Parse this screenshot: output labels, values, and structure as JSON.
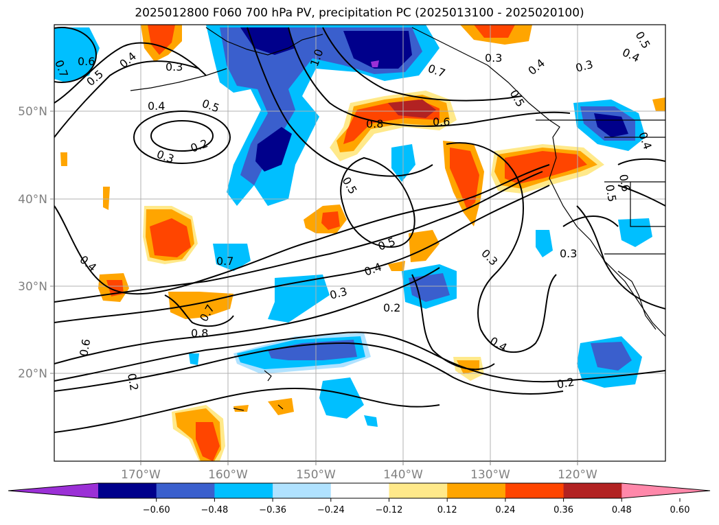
{
  "title": "2025012800 F060 700 hPa PV, precipitation PC (2025013100 - 2025020100)",
  "map": {
    "lon_labels": [
      "170°W",
      "160°W",
      "150°W",
      "140°W",
      "130°W",
      "120°W"
    ],
    "lat_labels": [
      "50°N",
      "40°N",
      "30°N",
      "20°N"
    ],
    "contour_labels": [
      "0.7",
      "0.6",
      "0.5",
      "0.4",
      "0.3",
      "0.4",
      "0.5",
      "0.4",
      "0.3",
      "0.2",
      "1.0",
      "0.8",
      "0.6",
      "0.7",
      "0.3",
      "0.5",
      "0.5",
      "0.4",
      "0.3",
      "0.2",
      "0.7",
      "0.8",
      "0.7",
      "0.6",
      "0.2",
      "0.4",
      "0.3",
      "0.3",
      "0.2",
      "0.4",
      "0.5",
      "0.4",
      "0.3",
      "0.4",
      "0.5",
      "0.6",
      "0.5"
    ]
  },
  "colorbar": {
    "ticks": [
      "−0.60",
      "−0.48",
      "−0.36",
      "−0.24",
      "−0.12",
      "0.12",
      "0.24",
      "0.36",
      "0.48",
      "0.60"
    ],
    "colors": [
      "#9b30d6",
      "#00008b",
      "#3a5fcd",
      "#00bfff",
      "#b0e2ff",
      "#ffffff",
      "#ffe98a",
      "#ffa500",
      "#ff4500",
      "#b22222",
      "#ff88aa"
    ]
  }
}
